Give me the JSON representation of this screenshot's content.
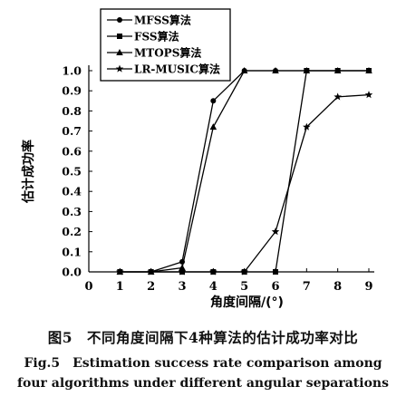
{
  "chart_data": {
    "type": "line",
    "xlabel": "角度间隔/(°)",
    "ylabel": "估计成功率",
    "xlim": [
      0,
      9
    ],
    "ylim": [
      0,
      1.0
    ],
    "x_ticks": [
      "0",
      "1",
      "2",
      "3",
      "4",
      "5",
      "6",
      "7",
      "8",
      "9"
    ],
    "y_ticks": [
      "0.0",
      "0.1",
      "0.2",
      "0.3",
      "0.4",
      "0.5",
      "0.6",
      "0.7",
      "0.8",
      "0.9",
      "1.0"
    ],
    "grid": false,
    "legend_position": "top-left",
    "series": [
      {
        "name": "MFSS算法",
        "marker": "circle",
        "x": [
          1,
          2,
          3,
          4,
          5,
          6,
          7,
          8,
          9
        ],
        "y": [
          0,
          0,
          0.05,
          0.85,
          1.0,
          1.0,
          1.0,
          1.0,
          1.0
        ]
      },
      {
        "name": "FSS算法",
        "marker": "square",
        "x": [
          1,
          2,
          3,
          4,
          5,
          6,
          7,
          8,
          9
        ],
        "y": [
          0,
          0,
          0,
          0,
          0,
          0,
          1.0,
          1.0,
          1.0
        ]
      },
      {
        "name": "MTOPS算法",
        "marker": "triangle",
        "x": [
          1,
          2,
          3,
          4,
          5,
          6,
          7,
          8,
          9
        ],
        "y": [
          0,
          0,
          0.02,
          0.72,
          1.0,
          1.0,
          1.0,
          1.0,
          1.0
        ]
      },
      {
        "name": "LR-MUSIC算法",
        "marker": "star",
        "x": [
          1,
          2,
          3,
          4,
          5,
          6,
          7,
          8,
          9
        ],
        "y": [
          0,
          0,
          0,
          0,
          0,
          0.2,
          0.72,
          0.87,
          0.88
        ]
      }
    ]
  },
  "caption": {
    "zh": "图5　不同角度间隔下4种算法的估计成功率对比",
    "en_line1": "Fig.5　Estimation success rate comparison among",
    "en_line2": "four algorithms under different angular separations"
  }
}
